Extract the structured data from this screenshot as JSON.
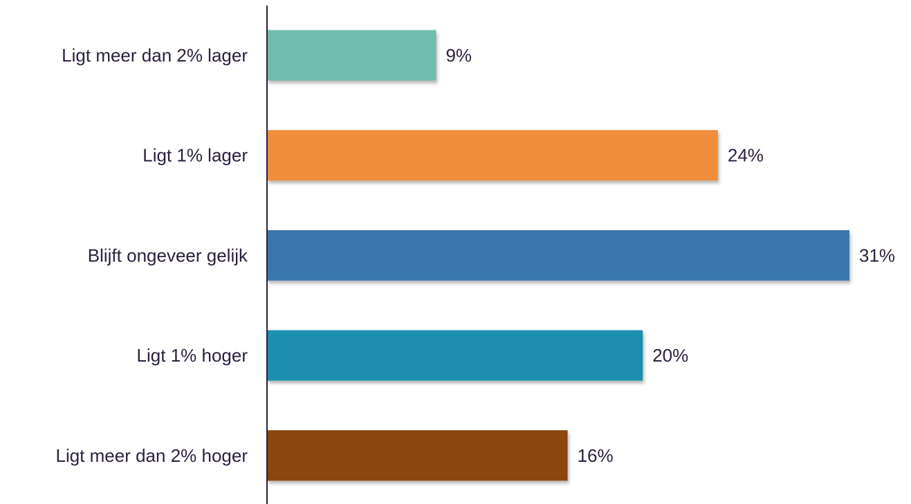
{
  "chart_data": {
    "type": "bar",
    "orientation": "horizontal",
    "title": "",
    "xlabel": "",
    "ylabel": "",
    "categories": [
      "Ligt meer dan 2% lager",
      "Ligt 1% lager",
      "Blijft ongeveer gelijk",
      "Ligt 1% hoger",
      "Ligt meer dan 2% hoger"
    ],
    "values": [
      9,
      24,
      31,
      20,
      16
    ],
    "value_labels": [
      "9%",
      "24%",
      "31%",
      "20%",
      "16%"
    ],
    "colors": [
      "#6fbdad",
      "#f08e3c",
      "#3b77ad",
      "#1f8fae",
      "#8b4408"
    ],
    "xlim": [
      0,
      31
    ],
    "grid": false,
    "legend": "none"
  }
}
